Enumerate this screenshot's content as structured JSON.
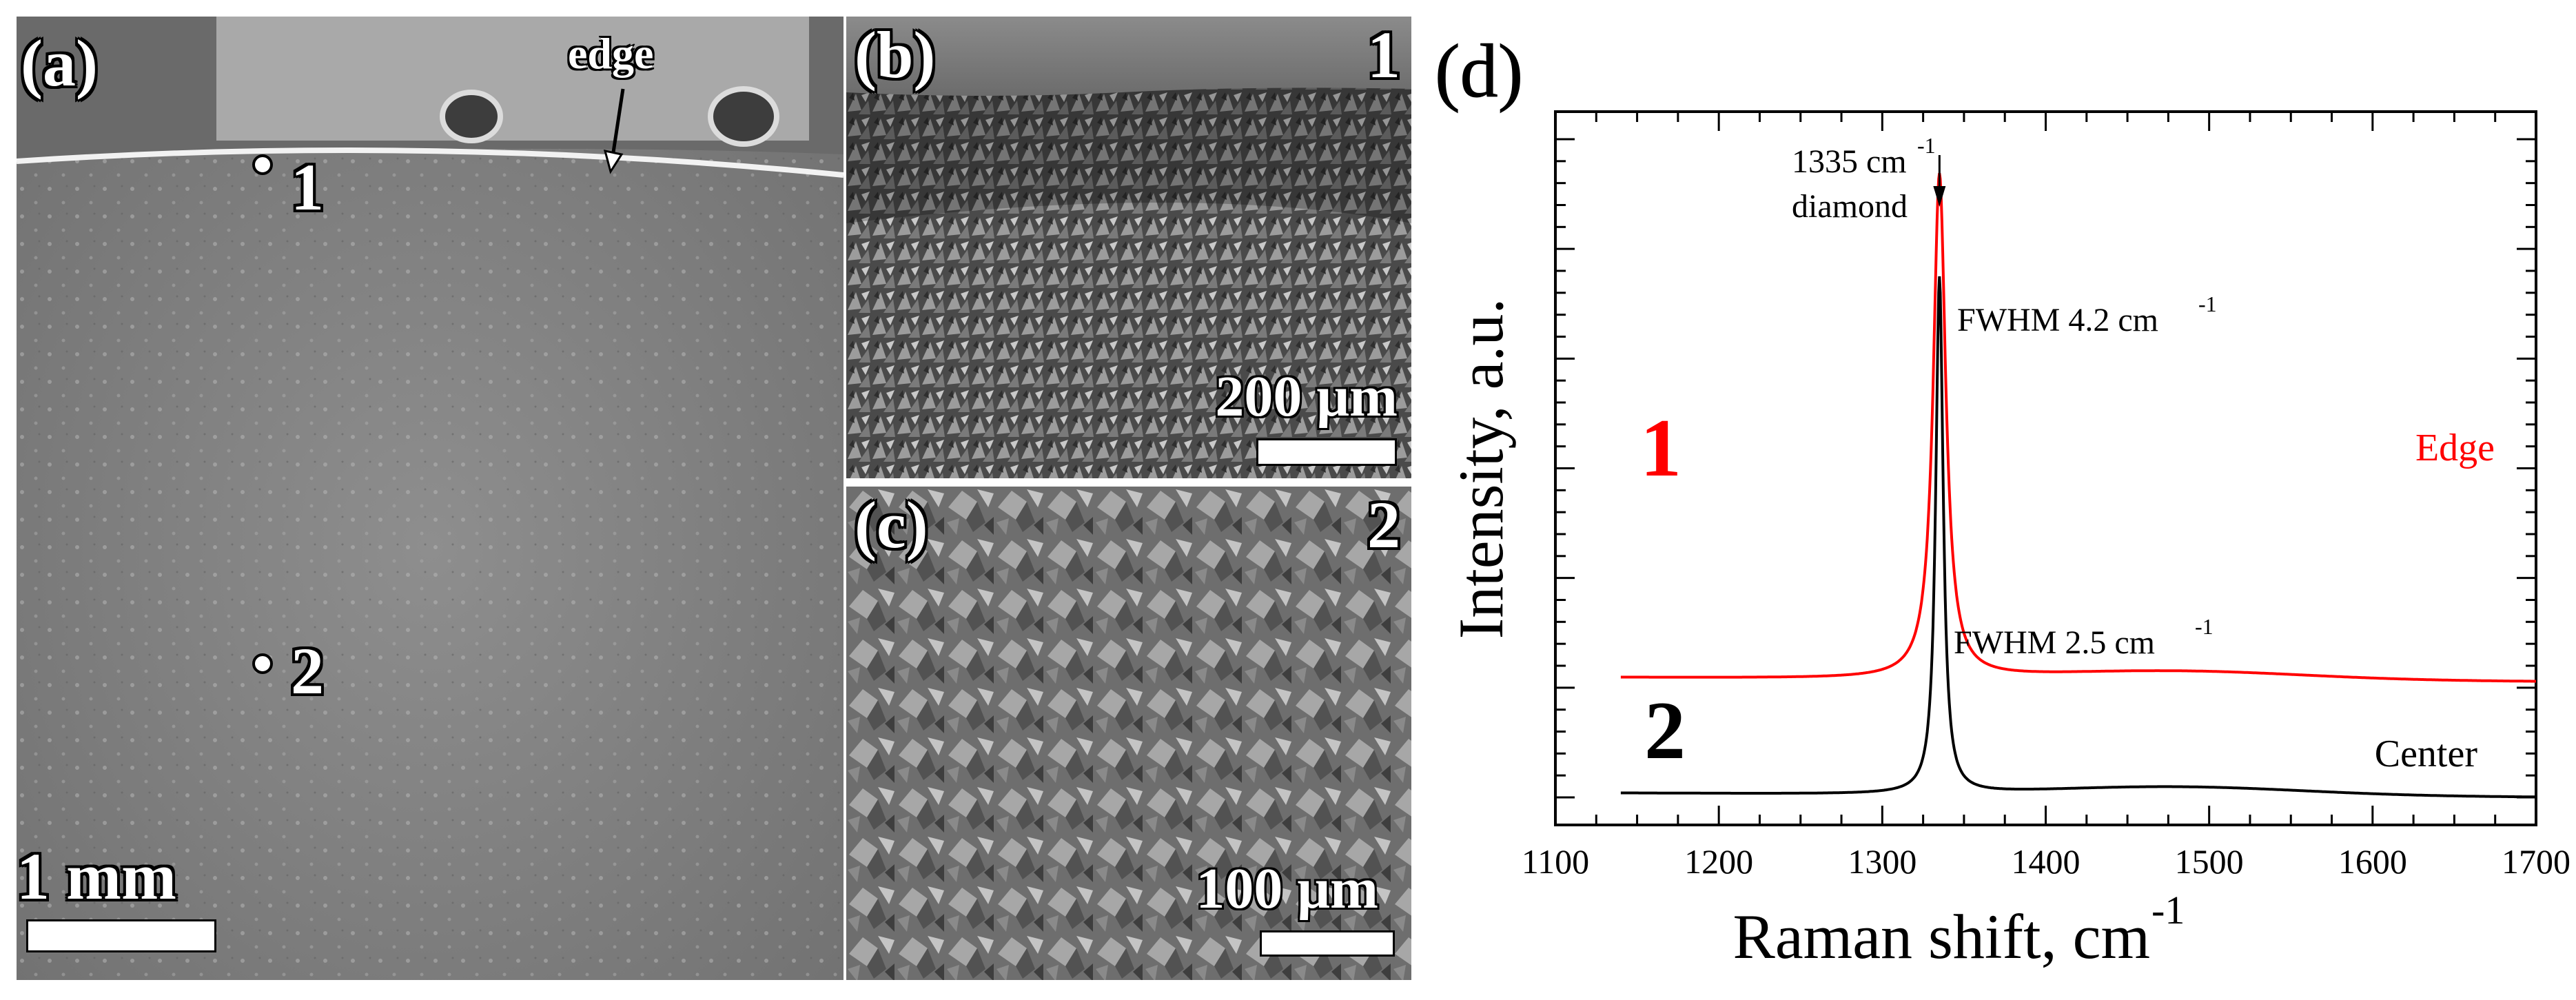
{
  "panels": {
    "a": {
      "label": "(a)",
      "edge_label": "edge",
      "point_1": "1",
      "point_2": "2",
      "scale": "1 mm"
    },
    "b": {
      "label": "(b)",
      "index": "1",
      "scale": "200 μm"
    },
    "c": {
      "label": "(c)",
      "index": "2",
      "scale": "100 μm"
    }
  },
  "chart_data": {
    "panel_label": "(d)",
    "type": "line",
    "xlabel": "Raman shift, cm",
    "xlabel_sup": "-1",
    "ylabel": "Intensity, a.u.",
    "xlim": [
      1100,
      1700
    ],
    "xticks": [
      1100,
      1200,
      1300,
      1400,
      1500,
      1600,
      1700
    ],
    "y_tick_labels": false,
    "peak_annotation": {
      "text_1": "1335 cm",
      "text_1_sup": "-1",
      "text_2": "diamond",
      "x": 1335
    },
    "series": [
      {
        "id": "1",
        "name": "Edge",
        "color": "#ff0000",
        "fwhm_label": "FWHM 4.2 cm",
        "fwhm_sup": "-1",
        "baseline": 0.55,
        "peak_x": 1335,
        "peak_height": 2.05,
        "fwhm": 4.2,
        "x_range": [
          1140,
          1700
        ]
      },
      {
        "id": "2",
        "name": "Center",
        "color": "#000000",
        "fwhm_label": "FWHM 2.5 cm",
        "fwhm_sup": "-1",
        "baseline": 0.08,
        "peak_x": 1335,
        "peak_height": 2.1,
        "fwhm": 2.5,
        "x_range": [
          1140,
          1700
        ]
      }
    ]
  }
}
